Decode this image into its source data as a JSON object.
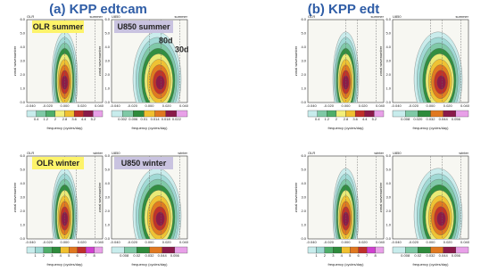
{
  "titles": [
    "(a) KPP edtcam",
    "(b) KPP edt"
  ],
  "yticks": [
    "0.0",
    "1.0",
    "2.0",
    "3.0",
    "4.0",
    "5.0",
    "6.0"
  ],
  "xticks": [
    "-0.040",
    "-0.020",
    "0.000",
    "0.020",
    "0.040"
  ],
  "ylabel": "zonal wavenumber",
  "xlabel": "frequency (cycles/day)",
  "periods": [
    "80d",
    "30d"
  ],
  "panels": [
    {
      "label": "OLR summer",
      "corner_left": "OLR",
      "corner_right": "summer",
      "colorbar": [
        "0.4",
        "1.2",
        "2",
        "2.8",
        "3.6",
        "4.4",
        "5.2"
      ]
    },
    {
      "label": "U850 summer",
      "corner_left": "U850",
      "corner_right": "summer",
      "colorbar": [
        "0.002",
        "0.006",
        "0.01",
        "0.014",
        "0.018",
        "0.022"
      ]
    },
    {
      "label": "OLR winter",
      "corner_left": "OLR",
      "corner_right": "winter",
      "colorbar": [
        "1",
        "2",
        "3",
        "4",
        "5",
        "6",
        "7",
        "8"
      ]
    },
    {
      "label": "U850 winter",
      "corner_left": "U850",
      "corner_right": "winter",
      "colorbar": [
        "0.008",
        "0.02",
        "0.032",
        "0.044",
        "0.056"
      ]
    },
    {
      "corner_left": "OLR",
      "corner_right": "summer",
      "colorbar": [
        "0.4",
        "1.2",
        "2",
        "2.8",
        "3.6",
        "4.4",
        "5.2"
      ]
    },
    {
      "corner_left": "U850",
      "corner_right": "summer",
      "colorbar": [
        "0.008",
        "0.020",
        "0.032",
        "0.044",
        "0.056"
      ]
    },
    {
      "corner_left": "OLR",
      "corner_right": "winter",
      "colorbar": [
        "1",
        "2",
        "3",
        "4",
        "5",
        "6",
        "7",
        "8"
      ]
    },
    {
      "corner_left": "U850",
      "corner_right": "winter",
      "colorbar": [
        "0.008",
        "0.02",
        "0.032",
        "0.044",
        "0.056"
      ]
    }
  ]
}
